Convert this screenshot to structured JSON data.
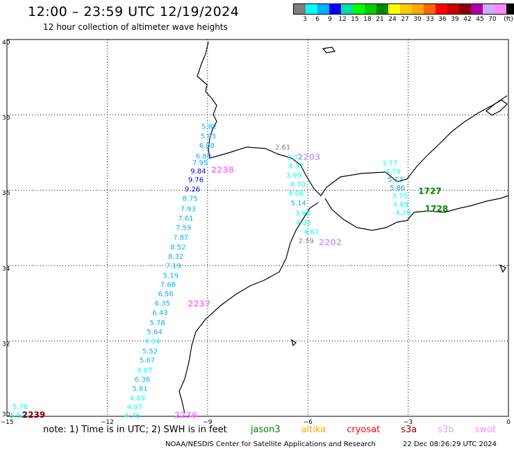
{
  "title": "12:00 – 23:59 UTC 12/19/2024",
  "subtitle": "12 hour collection of altimeter wave heights",
  "legend": {
    "unit": "(ft)",
    "colors": [
      "#808080",
      "#00ffff",
      "#00b0ff",
      "#0000ff",
      "#00ddaa",
      "#00ff00",
      "#00cc00",
      "#008800",
      "#ffff00",
      "#ffcc00",
      "#ffaa00",
      "#ff6600",
      "#ff0000",
      "#cc0000",
      "#880000",
      "#aa00aa",
      "#ccaaff",
      "#ff88ff",
      "#000000"
    ],
    "ticks": [
      "3",
      "6",
      "9",
      "12",
      "15",
      "18",
      "21",
      "24",
      "27",
      "30",
      "33",
      "36",
      "39",
      "42",
      "45",
      "70"
    ]
  },
  "axes": {
    "lon_min": -15,
    "lon_max": 0,
    "lat_min": 30,
    "lat_max": 40,
    "x_ticks": [
      {
        "value": -15,
        "label": "−15"
      },
      {
        "value": -12,
        "label": "−12"
      },
      {
        "value": -9,
        "label": "−9"
      },
      {
        "value": -6,
        "label": "−6"
      },
      {
        "value": -3,
        "label": "−3"
      },
      {
        "value": 0,
        "label": "0"
      }
    ],
    "y_ticks": [
      {
        "value": 40,
        "label": "40"
      },
      {
        "value": 38,
        "label": "38"
      },
      {
        "value": 36,
        "label": "36"
      },
      {
        "value": 34,
        "label": "34"
      },
      {
        "value": 32,
        "label": "32"
      },
      {
        "value": 30,
        "label": "30"
      }
    ]
  },
  "chart_data": {
    "type": "scatter",
    "passes": [
      {
        "label": "2238",
        "lon": -8.55,
        "lat": 36.53,
        "color": "#ff88ff"
      },
      {
        "label": "2203",
        "lon": -5.97,
        "lat": 36.87,
        "color": "#ccaaff"
      },
      {
        "label": "2202",
        "lon": -5.33,
        "lat": 34.6,
        "color": "#ccaaff"
      },
      {
        "label": "1727",
        "lon": -2.35,
        "lat": 35.97,
        "color": "#008800"
      },
      {
        "label": "1728",
        "lon": -2.15,
        "lat": 35.5,
        "color": "#008800"
      },
      {
        "label": "2237",
        "lon": -9.25,
        "lat": 32.97,
        "color": "#ff88ff"
      },
      {
        "label": "2236",
        "lon": -9.65,
        "lat": 30.02,
        "color": "#ff88ff"
      },
      {
        "label": "2239",
        "lon": -14.2,
        "lat": 30.03,
        "color": "#880000"
      }
    ],
    "points": [
      {
        "v": "5.82",
        "lon": -8.95,
        "lat": 37.69,
        "color": "#00b0ff"
      },
      {
        "v": "5.93",
        "lon": -8.98,
        "lat": 37.43,
        "color": "#00b0ff"
      },
      {
        "v": "6.88",
        "lon": -9.02,
        "lat": 37.18,
        "color": "#00b0ff"
      },
      {
        "v": "6.80",
        "lon": -9.12,
        "lat": 36.9,
        "color": "#00b0ff"
      },
      {
        "v": "7.95",
        "lon": -9.22,
        "lat": 36.72,
        "color": "#00b0ff"
      },
      {
        "v": "9.84",
        "lon": -9.28,
        "lat": 36.5,
        "color": "#0000ff"
      },
      {
        "v": "9.76",
        "lon": -9.35,
        "lat": 36.27,
        "color": "#0000ff"
      },
      {
        "v": "9.26",
        "lon": -9.45,
        "lat": 36.02,
        "color": "#0000ff"
      },
      {
        "v": "8.75",
        "lon": -9.52,
        "lat": 35.77,
        "color": "#00b0ff"
      },
      {
        "v": "7.93",
        "lon": -9.58,
        "lat": 35.5,
        "color": "#00b0ff"
      },
      {
        "v": "7.61",
        "lon": -9.65,
        "lat": 35.25,
        "color": "#00b0ff"
      },
      {
        "v": "7.59",
        "lon": -9.72,
        "lat": 35,
        "color": "#00b0ff"
      },
      {
        "v": "7.87",
        "lon": -9.8,
        "lat": 34.74,
        "color": "#00b0ff"
      },
      {
        "v": "8.52",
        "lon": -9.88,
        "lat": 34.48,
        "color": "#00b0ff"
      },
      {
        "v": "8.32",
        "lon": -9.95,
        "lat": 34.24,
        "color": "#00b0ff"
      },
      {
        "v": "7.19",
        "lon": -10.02,
        "lat": 33.99,
        "color": "#00b0ff"
      },
      {
        "v": "5.19",
        "lon": -10.1,
        "lat": 33.73,
        "color": "#00b0ff"
      },
      {
        "v": "7.68",
        "lon": -10.18,
        "lat": 33.49,
        "color": "#00b0ff"
      },
      {
        "v": "6.56",
        "lon": -10.25,
        "lat": 33.24,
        "color": "#00b0ff"
      },
      {
        "v": "6.35",
        "lon": -10.35,
        "lat": 32.99,
        "color": "#00b0ff"
      },
      {
        "v": "6.43",
        "lon": -10.42,
        "lat": 32.74,
        "color": "#00b0ff"
      },
      {
        "v": "5.78",
        "lon": -10.5,
        "lat": 32.48,
        "color": "#00b0ff"
      },
      {
        "v": "5.64",
        "lon": -10.58,
        "lat": 32.24,
        "color": "#00b0ff"
      },
      {
        "v": "4.94",
        "lon": -10.65,
        "lat": 31.99,
        "color": "#00ffff"
      },
      {
        "v": "5.52",
        "lon": -10.72,
        "lat": 31.72,
        "color": "#00b0ff"
      },
      {
        "v": "5.67",
        "lon": -10.8,
        "lat": 31.48,
        "color": "#00b0ff"
      },
      {
        "v": "4.87",
        "lon": -10.88,
        "lat": 31.22,
        "color": "#00ffff"
      },
      {
        "v": "6.36",
        "lon": -10.95,
        "lat": 30.98,
        "color": "#00b0ff"
      },
      {
        "v": "5.81",
        "lon": -11.02,
        "lat": 30.73,
        "color": "#00b0ff"
      },
      {
        "v": "4.89",
        "lon": -11.1,
        "lat": 30.48,
        "color": "#00ffff"
      },
      {
        "v": "4.97",
        "lon": -11.18,
        "lat": 30.24,
        "color": "#00ffff"
      },
      {
        "v": "4.76",
        "lon": -11.25,
        "lat": 30.01,
        "color": "#00ffff"
      },
      {
        "v": "5.78",
        "lon": -14.6,
        "lat": 30.25,
        "color": "#00ffff"
      },
      {
        "v": "5.52",
        "lon": -14.68,
        "lat": 30.02,
        "color": "#00ffff"
      },
      {
        "v": "2.61",
        "lon": -6.75,
        "lat": 37.14,
        "color": "#808080"
      },
      {
        "v": "3.72",
        "lon": -6.38,
        "lat": 36.86,
        "color": "#00ffff"
      },
      {
        "v": "4.32",
        "lon": -6.35,
        "lat": 36.64,
        "color": "#00ffff"
      },
      {
        "v": "3.99",
        "lon": -6.42,
        "lat": 36.39,
        "color": "#00ffff"
      },
      {
        "v": "4.70",
        "lon": -6.3,
        "lat": 36.15,
        "color": "#00ffff"
      },
      {
        "v": "4.06",
        "lon": -6.35,
        "lat": 35.91,
        "color": "#00ffff"
      },
      {
        "v": "5.14",
        "lon": -6.28,
        "lat": 35.65,
        "color": "#00b0ff"
      },
      {
        "v": "3.68",
        "lon": -6.15,
        "lat": 35.39,
        "color": "#00ffff"
      },
      {
        "v": "4.35",
        "lon": -6.12,
        "lat": 35.14,
        "color": "#00ffff"
      },
      {
        "v": "4.67",
        "lon": -5.9,
        "lat": 34.89,
        "color": "#00ffff"
      },
      {
        "v": "2.59",
        "lon": -6.05,
        "lat": 34.65,
        "color": "#808080"
      },
      {
        "v": "3.77",
        "lon": -3.55,
        "lat": 36.71,
        "color": "#00ffff"
      },
      {
        "v": "4.79",
        "lon": -3.45,
        "lat": 36.49,
        "color": "#00ffff"
      },
      {
        "v": "5.13",
        "lon": -3.38,
        "lat": 36.28,
        "color": "#00b0ff"
      },
      {
        "v": "5.86",
        "lon": -3.32,
        "lat": 36.06,
        "color": "#00b0ff"
      },
      {
        "v": "3.75",
        "lon": -3.25,
        "lat": 35.85,
        "color": "#00ffff"
      },
      {
        "v": "4.69",
        "lon": -3.22,
        "lat": 35.62,
        "color": "#00ffff"
      },
      {
        "v": "4.29",
        "lon": -3.15,
        "lat": 35.4,
        "color": "#00ffff"
      }
    ]
  },
  "footer": {
    "note_prefix": "note:  1) Time is in UTC;  2) SWH is in feet",
    "satellites": [
      {
        "name": "jason3",
        "color": "#008800"
      },
      {
        "name": "altika",
        "color": "#ffaa00"
      },
      {
        "name": "cryosat",
        "color": "#ff0000"
      },
      {
        "name": "s3a",
        "color": "#880000"
      },
      {
        "name": "s3b",
        "color": "#ccaaff"
      },
      {
        "name": "swot",
        "color": "#ff88ff"
      }
    ],
    "credit": "NOAA/NESDIS Center for Satellite Applications and Research",
    "timestamp": "22 Dec 08:26:29 UTC 2024"
  }
}
